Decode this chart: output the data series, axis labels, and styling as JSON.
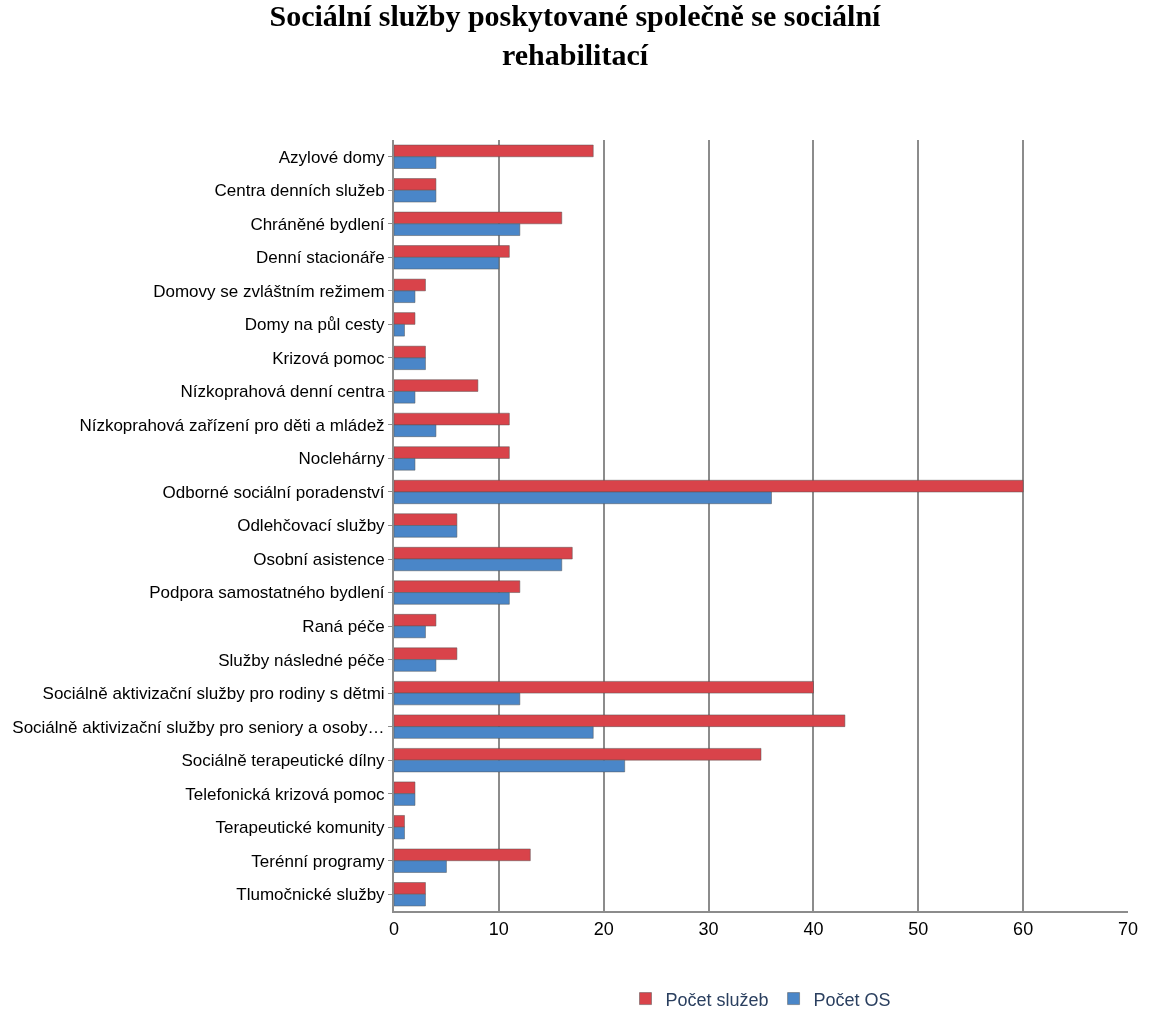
{
  "chart_data": {
    "type": "bar",
    "orientation": "horizontal",
    "title": "Sociální služby poskytované společně se sociální rehabilitací",
    "categories": [
      "Azylové domy",
      "Centra denních služeb",
      "Chráněné bydlení",
      "Denní stacionáře",
      "Domovy se zvláštním režimem",
      "Domy na půl cesty",
      "Krizová pomoc",
      "Nízkoprahová denní centra",
      "Nízkoprahová zařízení pro děti a mládež",
      "Noclehárny",
      "Odborné sociální poradenství",
      "Odlehčovací služby",
      "Osobní asistence",
      "Podpora samostatného bydlení",
      "Raná péče",
      "Služby následné péče",
      "Sociálně aktivizační služby pro rodiny s dětmi",
      "Sociálně aktivizační služby pro seniory a osoby…",
      "Sociálně terapeutické dílny",
      "Telefonická krizová pomoc",
      "Terapeutické komunity",
      "Terénní programy",
      "Tlumočnické služby"
    ],
    "series": [
      {
        "name": "Počet služeb",
        "color": "#d9434a",
        "values": [
          19,
          4,
          16,
          11,
          3,
          2,
          3,
          8,
          11,
          11,
          60,
          6,
          17,
          12,
          4,
          6,
          40,
          43,
          35,
          2,
          1,
          13,
          3
        ]
      },
      {
        "name": "Počet OS",
        "color": "#4a86c8",
        "values": [
          4,
          4,
          12,
          10,
          2,
          1,
          3,
          2,
          4,
          2,
          36,
          6,
          16,
          11,
          3,
          4,
          12,
          19,
          22,
          2,
          1,
          5,
          3
        ]
      }
    ],
    "xlim": [
      0,
      70
    ],
    "xticks": [
      0,
      10,
      20,
      30,
      40,
      50,
      60,
      70
    ],
    "grid": "x",
    "legend": "bottom"
  }
}
